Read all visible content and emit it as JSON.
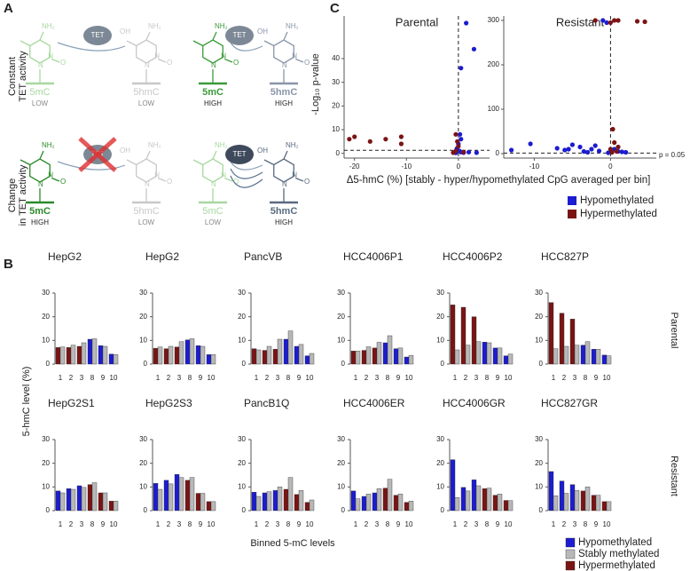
{
  "panel_a": {
    "label": "A",
    "atoms": {
      "amine": "NH₂",
      "hydroxyl": "OH",
      "nitrogen": "N",
      "oxygen": "O"
    },
    "rows": [
      {
        "label_lines": [
          "Constant",
          "TET activity"
        ],
        "enzymes": [
          "TET",
          "TET"
        ],
        "molecules": [
          {
            "name": "5mC",
            "level": "LOW"
          },
          {
            "name": "5hmC",
            "level": "LOW"
          },
          {
            "name": "5mC",
            "level": "HIGH"
          },
          {
            "name": "5hmC",
            "level": "HIGH"
          }
        ]
      },
      {
        "label_lines": [
          "Change",
          "in TET activity"
        ],
        "enzymes": [
          "TET",
          "TET"
        ],
        "molecules": [
          {
            "name": "5mC",
            "level": "HIGH"
          },
          {
            "name": "5hmC",
            "level": "LOW"
          },
          {
            "name": "5mC",
            "level": "LOW"
          },
          {
            "name": "5hmC",
            "level": "HIGH"
          }
        ]
      }
    ]
  },
  "panel_b": {
    "label": "B",
    "y_label": "5-hmC level (%)",
    "x_label": "Binned 5-mC levels",
    "row_labels": [
      "Parental",
      "Resistant"
    ],
    "legend": [
      {
        "name": "Hypomethylated",
        "color": "#1c1cd0"
      },
      {
        "name": "Stably methylated",
        "color": "#b8b8b8"
      },
      {
        "name": "Hypermethylated",
        "color": "#7a1414"
      }
    ]
  },
  "panel_c": {
    "label": "C",
    "y_label": "-Log₁₀ p-value",
    "x_label": "Δ5-hmC (%) [stably - hyper/hypomethylated CpG averaged per bin]",
    "threshold_label": "p = 0.05"
  },
  "chart_data": [
    {
      "type": "scatter",
      "title": "Parental",
      "xlim": [
        -22,
        6
      ],
      "ylim": [
        -2,
        58
      ],
      "xticks": [
        -20,
        -10,
        0
      ],
      "yticks": [
        0,
        10,
        20,
        30,
        40
      ],
      "hline": 1.3,
      "vline": 0,
      "series": [
        {
          "name": "Hypomethylated",
          "color": "#1c1cd0",
          "x": [
            1.5,
            3,
            0.5,
            0.3,
            0.5,
            0,
            -0.3,
            0.2,
            0.5,
            1,
            -0.5,
            2,
            3.5
          ],
          "values": [
            55,
            44,
            36,
            8,
            6,
            4,
            2,
            1,
            0.5,
            0.3,
            0.2,
            0.5,
            0.3
          ]
        },
        {
          "name": "Hypermethylated",
          "color": "#7a1414",
          "x": [
            -20,
            -21,
            -17,
            -14,
            -11,
            -11,
            -0.5,
            -0.2,
            0,
            -0.5,
            1,
            -1
          ],
          "values": [
            7,
            6,
            5,
            6,
            7,
            4,
            8,
            5,
            3,
            1,
            0.5,
            0.3
          ]
        }
      ]
    },
    {
      "type": "scatter",
      "title": "Resistant",
      "xlim": [
        -14,
        6
      ],
      "ylim": [
        -10,
        310
      ],
      "xticks": [
        -10,
        0
      ],
      "yticks": [
        0,
        100,
        200,
        300
      ],
      "hline": 1.3,
      "vline": 0,
      "series": [
        {
          "name": "Hypomethylated",
          "color": "#1c1cd0",
          "x": [
            -13,
            -10.5,
            -7,
            -6,
            -5.5,
            -5,
            -4,
            -3.5,
            -3,
            -2.5,
            -2,
            -1.5,
            -1,
            -0.5,
            0.5,
            1,
            1.5,
            2,
            -0.3
          ],
          "values": [
            8,
            22,
            12,
            8,
            10,
            20,
            15,
            5,
            3,
            10,
            18,
            6,
            300,
            295,
            10,
            5,
            4,
            3,
            2
          ]
        },
        {
          "name": "Hypermethylated",
          "color": "#7a1414",
          "x": [
            -2,
            0,
            0.5,
            1,
            3.5,
            4.5,
            0.3,
            0.5,
            0.8,
            1,
            0,
            0.2
          ],
          "values": [
            300,
            295,
            300,
            300,
            298,
            297,
            55,
            25,
            5,
            15,
            10,
            3
          ]
        }
      ]
    },
    {
      "type": "bar",
      "title": "HepG2",
      "categories": [
        "1",
        "2",
        "3",
        "8",
        "9",
        "10"
      ],
      "ylim": [
        0,
        30
      ],
      "yticks": [
        0,
        10,
        20,
        30
      ],
      "series": [
        {
          "color": "#1c1cd0",
          "values": [
            null,
            null,
            null,
            10.5,
            7.8,
            4.2
          ]
        },
        {
          "color": "#7a1414",
          "values": [
            7,
            7,
            7.5,
            null,
            null,
            null
          ]
        },
        {
          "color": "#b8b8b8",
          "values": [
            7.2,
            8,
            9,
            10.7,
            7.5,
            4
          ]
        }
      ]
    },
    {
      "type": "bar",
      "title": "HepG2",
      "categories": [
        "1",
        "2",
        "3",
        "8",
        "9",
        "10"
      ],
      "ylim": [
        0,
        30
      ],
      "yticks": [
        0,
        10,
        20,
        30
      ],
      "series": [
        {
          "color": "#1c1cd0",
          "values": [
            null,
            null,
            null,
            10.2,
            7.8,
            4
          ]
        },
        {
          "color": "#7a1414",
          "values": [
            6.7,
            6.5,
            7.2,
            null,
            null,
            null
          ]
        },
        {
          "color": "#b8b8b8",
          "values": [
            7.2,
            7.5,
            9.5,
            10.7,
            7.5,
            4
          ]
        }
      ]
    },
    {
      "type": "bar",
      "title": "PancVB",
      "categories": [
        "1",
        "2",
        "3",
        "8",
        "9",
        "10"
      ],
      "ylim": [
        0,
        30
      ],
      "yticks": [
        0,
        10,
        20,
        30
      ],
      "series": [
        {
          "color": "#1c1cd0",
          "values": [
            null,
            null,
            null,
            10.5,
            7.5,
            3.5
          ]
        },
        {
          "color": "#7a1414",
          "values": [
            6.5,
            5.8,
            6.3,
            null,
            null,
            null
          ]
        },
        {
          "color": "#b8b8b8",
          "values": [
            6,
            7.5,
            10.5,
            14,
            8.3,
            4.5
          ]
        }
      ]
    },
    {
      "type": "bar",
      "title": "HCC4006P1",
      "categories": [
        "1",
        "2",
        "3",
        "8",
        "9",
        "10"
      ],
      "ylim": [
        0,
        30
      ],
      "yticks": [
        0,
        10,
        20,
        30
      ],
      "series": [
        {
          "color": "#1c1cd0",
          "values": [
            null,
            null,
            null,
            9,
            6.5,
            3
          ]
        },
        {
          "color": "#7a1414",
          "values": [
            5.5,
            5.8,
            6.8,
            null,
            null,
            null
          ]
        },
        {
          "color": "#b8b8b8",
          "values": [
            5.5,
            7.3,
            9.2,
            12,
            6.8,
            3.7
          ]
        }
      ]
    },
    {
      "type": "bar",
      "title": "HCC4006P2",
      "categories": [
        "1",
        "2",
        "3",
        "8",
        "9",
        "10"
      ],
      "ylim": [
        0,
        30
      ],
      "yticks": [
        0,
        10,
        20,
        30
      ],
      "series": [
        {
          "color": "#1c1cd0",
          "values": [
            null,
            null,
            null,
            9.3,
            6.8,
            3.5
          ]
        },
        {
          "color": "#7a1414",
          "values": [
            25,
            24,
            20,
            null,
            null,
            null
          ]
        },
        {
          "color": "#b8b8b8",
          "values": [
            6,
            8,
            9.5,
            9,
            6.8,
            4.2
          ]
        }
      ]
    },
    {
      "type": "bar",
      "title": "HCC827P",
      "categories": [
        "1",
        "2",
        "3",
        "8",
        "9",
        "10"
      ],
      "ylim": [
        0,
        30
      ],
      "yticks": [
        0,
        10,
        20,
        30
      ],
      "series": [
        {
          "color": "#1c1cd0",
          "values": [
            null,
            null,
            null,
            8,
            6.3,
            3.8
          ]
        },
        {
          "color": "#7a1414",
          "values": [
            26,
            21.5,
            19,
            null,
            null,
            null
          ]
        },
        {
          "color": "#b8b8b8",
          "values": [
            6.5,
            7.5,
            8,
            9.5,
            6.3,
            3.5
          ]
        }
      ]
    },
    {
      "type": "bar",
      "title": "HepG2S1",
      "categories": [
        "1",
        "2",
        "3",
        "8",
        "9",
        "10"
      ],
      "ylim": [
        0,
        30
      ],
      "yticks": [
        0,
        10,
        20,
        30
      ],
      "series": [
        {
          "color": "#1c1cd0",
          "values": [
            8.3,
            9.3,
            10.5,
            null,
            null,
            null
          ]
        },
        {
          "color": "#7a1414",
          "values": [
            null,
            null,
            null,
            11,
            7.5,
            4
          ]
        },
        {
          "color": "#b8b8b8",
          "values": [
            7.5,
            9,
            9.8,
            11.8,
            7.5,
            4
          ]
        }
      ]
    },
    {
      "type": "bar",
      "title": "HepG2S3",
      "categories": [
        "1",
        "2",
        "3",
        "8",
        "9",
        "10"
      ],
      "ylim": [
        0,
        30
      ],
      "yticks": [
        0,
        10,
        20,
        30
      ],
      "series": [
        {
          "color": "#1c1cd0",
          "values": [
            11.5,
            12.8,
            15.3,
            null,
            null,
            null
          ]
        },
        {
          "color": "#7a1414",
          "values": [
            null,
            null,
            null,
            12.8,
            7.3,
            3.8
          ]
        },
        {
          "color": "#b8b8b8",
          "values": [
            9,
            11.3,
            14,
            14,
            7.3,
            3.8
          ]
        }
      ]
    },
    {
      "type": "bar",
      "title": "PancB1Q",
      "categories": [
        "1",
        "2",
        "3",
        "8",
        "9",
        "10"
      ],
      "ylim": [
        0,
        30
      ],
      "yticks": [
        0,
        10,
        20,
        30
      ],
      "series": [
        {
          "color": "#1c1cd0",
          "values": [
            7.8,
            7.5,
            8.5,
            null,
            null,
            null
          ]
        },
        {
          "color": "#7a1414",
          "values": [
            null,
            null,
            null,
            9,
            6.8,
            3.5
          ]
        },
        {
          "color": "#b8b8b8",
          "values": [
            6,
            8,
            10,
            14,
            8.5,
            4.5
          ]
        }
      ]
    },
    {
      "type": "bar",
      "title": "HCC4006ER",
      "categories": [
        "1",
        "2",
        "3",
        "8",
        "9",
        "10"
      ],
      "ylim": [
        0,
        30
      ],
      "yticks": [
        0,
        10,
        20,
        30
      ],
      "series": [
        {
          "color": "#1c1cd0",
          "values": [
            8.3,
            6,
            7.5,
            null,
            null,
            null
          ]
        },
        {
          "color": "#7a1414",
          "values": [
            null,
            null,
            null,
            9.5,
            6.5,
            3.5
          ]
        },
        {
          "color": "#b8b8b8",
          "values": [
            5,
            7,
            9.3,
            13.2,
            7,
            4
          ]
        }
      ]
    },
    {
      "type": "bar",
      "title": "HCC4006GR",
      "categories": [
        "1",
        "2",
        "3",
        "8",
        "9",
        "10"
      ],
      "ylim": [
        0,
        30
      ],
      "yticks": [
        0,
        10,
        20,
        30
      ],
      "series": [
        {
          "color": "#1c1cd0",
          "values": [
            21.5,
            9.8,
            13,
            null,
            null,
            null
          ]
        },
        {
          "color": "#7a1414",
          "values": [
            null,
            null,
            null,
            9.3,
            6.5,
            4.3
          ]
        },
        {
          "color": "#b8b8b8",
          "values": [
            5.5,
            8.3,
            10.5,
            9.5,
            7,
            4.2
          ]
        }
      ]
    },
    {
      "type": "bar",
      "title": "HCC827GR",
      "categories": [
        "1",
        "2",
        "3",
        "8",
        "9",
        "10"
      ],
      "ylim": [
        0,
        30
      ],
      "yticks": [
        0,
        10,
        20,
        30
      ],
      "series": [
        {
          "color": "#1c1cd0",
          "values": [
            16.5,
            12.5,
            11,
            null,
            null,
            null
          ]
        },
        {
          "color": "#7a1414",
          "values": [
            null,
            null,
            null,
            8.3,
            6.5,
            3.8
          ]
        },
        {
          "color": "#b8b8b8",
          "values": [
            6.3,
            7.3,
            8.5,
            10,
            6.5,
            3.8
          ]
        }
      ]
    }
  ]
}
